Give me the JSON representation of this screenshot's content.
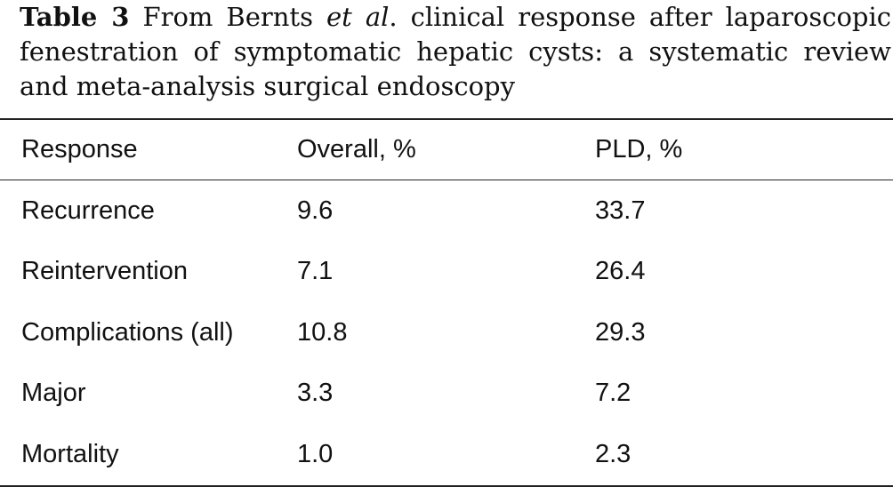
{
  "caption": {
    "label": "Table 3",
    "text_before": "From Bernts",
    "italic": "et al",
    "text_after": ". clinical response after laparoscopic fenestration of symptomatic hepatic cysts: a systematic review and meta-analysis surgical endoscopy"
  },
  "table": {
    "headers": [
      "Response",
      "Overall, %",
      "PLD, %"
    ],
    "rows": [
      [
        "Recurrence",
        "9.6",
        "33.7"
      ],
      [
        "Reintervention",
        "7.1",
        "26.4"
      ],
      [
        "Complications (all)",
        "10.8",
        "29.3"
      ],
      [
        "Major",
        "3.3",
        "7.2"
      ],
      [
        "Mortality",
        "1.0",
        "2.3"
      ]
    ]
  }
}
